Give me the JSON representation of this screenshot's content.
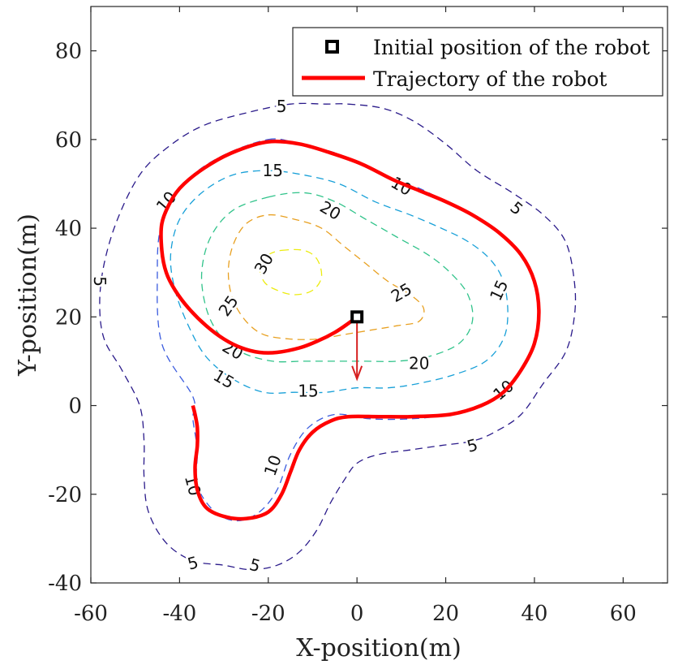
{
  "chart_data": {
    "type": "contour",
    "xlabel": "X-position(m)",
    "ylabel": "Y-position(m)",
    "xlim": [
      -60,
      70
    ],
    "ylim": [
      -40,
      90
    ],
    "xticks": [
      -60,
      -40,
      -20,
      0,
      20,
      40,
      60
    ],
    "yticks": [
      -40,
      -20,
      0,
      20,
      40,
      60,
      80
    ],
    "legend": {
      "location": "top-right",
      "entries": [
        {
          "label": "Initial position of the robot",
          "marker": "square",
          "color": "#000000"
        },
        {
          "label": "Trajectory of the robot",
          "line": "solid",
          "color": "#ff0000"
        }
      ]
    },
    "initial_position": {
      "x": 0,
      "y": 20
    },
    "heading_arrow": {
      "from": [
        0,
        20
      ],
      "to": [
        0,
        6
      ],
      "color": "#d62020"
    },
    "contours": [
      {
        "level": 5,
        "color": "#2a1a8a",
        "points": [
          [
            -2,
            68
          ],
          [
            6,
            67
          ],
          [
            13,
            64
          ],
          [
            20,
            59
          ],
          [
            27,
            53
          ],
          [
            35,
            48
          ],
          [
            42,
            43
          ],
          [
            47,
            37
          ],
          [
            49,
            28
          ],
          [
            49,
            20
          ],
          [
            47,
            12
          ],
          [
            42,
            5
          ],
          [
            37,
            -2
          ],
          [
            31,
            -6
          ],
          [
            26,
            -8
          ],
          [
            19,
            -9
          ],
          [
            12,
            -10
          ],
          [
            5,
            -11
          ],
          [
            0,
            -13
          ],
          [
            -3,
            -17
          ],
          [
            -6,
            -22
          ],
          [
            -9,
            -28
          ],
          [
            -13,
            -33
          ],
          [
            -18,
            -36
          ],
          [
            -24,
            -37
          ],
          [
            -30,
            -36
          ],
          [
            -37,
            -35
          ],
          [
            -43,
            -31
          ],
          [
            -47,
            -24
          ],
          [
            -48,
            -16
          ],
          [
            -48,
            -8
          ],
          [
            -49,
            0
          ],
          [
            -53,
            8
          ],
          [
            -57,
            15
          ],
          [
            -58,
            23
          ],
          [
            -57,
            32
          ],
          [
            -54,
            42
          ],
          [
            -49,
            52
          ],
          [
            -43,
            58
          ],
          [
            -35,
            63
          ],
          [
            -25,
            66
          ],
          [
            -15,
            68
          ],
          [
            -7,
            68
          ],
          [
            -2,
            68
          ]
        ],
        "labels": [
          {
            "text": "5",
            "x": -17,
            "y": 67.5,
            "angle": 0
          },
          {
            "text": "5",
            "x": 36,
            "y": 44.5,
            "angle": 40
          },
          {
            "text": "5",
            "x": -58,
            "y": 28,
            "angle": 90
          },
          {
            "text": "5",
            "x": 26,
            "y": -9,
            "angle": -15
          },
          {
            "text": "5",
            "x": -37,
            "y": -35.5,
            "angle": -15
          },
          {
            "text": "5",
            "x": -23,
            "y": -36,
            "angle": 15
          }
        ]
      },
      {
        "level": 10,
        "color": "#3a5bde",
        "points": [
          [
            -20,
            60
          ],
          [
            -13,
            59
          ],
          [
            -5,
            57
          ],
          [
            2,
            54
          ],
          [
            8,
            51
          ],
          [
            14,
            49
          ],
          [
            20,
            46
          ],
          [
            26,
            43
          ],
          [
            32,
            39
          ],
          [
            37,
            34
          ],
          [
            40,
            28
          ],
          [
            41,
            21
          ],
          [
            40,
            14
          ],
          [
            37,
            8
          ],
          [
            33,
            3
          ],
          [
            28,
            0
          ],
          [
            21,
            -2
          ],
          [
            12,
            -3
          ],
          [
            3,
            -3
          ],
          [
            -5,
            -2
          ],
          [
            -11,
            -5
          ],
          [
            -15,
            -11
          ],
          [
            -18,
            -19
          ],
          [
            -22,
            -24
          ],
          [
            -27,
            -26
          ],
          [
            -32,
            -24
          ],
          [
            -36,
            -18
          ],
          [
            -36,
            -10
          ],
          [
            -37,
            -3
          ],
          [
            -37,
            2
          ],
          [
            -44,
            14
          ],
          [
            -45,
            30
          ],
          [
            -44,
            41
          ],
          [
            -39,
            50
          ],
          [
            -31,
            56
          ],
          [
            -20,
            60
          ]
        ],
        "labels": [
          {
            "text": "10",
            "x": -43,
            "y": 46,
            "angle": -50
          },
          {
            "text": "10",
            "x": 10,
            "y": 49.5,
            "angle": 30
          },
          {
            "text": "10",
            "x": 33,
            "y": 3.5,
            "angle": -40
          },
          {
            "text": "10",
            "x": -19,
            "y": -13.5,
            "angle": -70
          },
          {
            "text": "10",
            "x": -37,
            "y": -18,
            "angle": 75
          }
        ]
      },
      {
        "level": 15,
        "color": "#18a0d8",
        "points": [
          [
            -20,
            53
          ],
          [
            -12,
            52
          ],
          [
            -4,
            50
          ],
          [
            4,
            46
          ],
          [
            12,
            43
          ],
          [
            19,
            40
          ],
          [
            25,
            37
          ],
          [
            30,
            33
          ],
          [
            33,
            28
          ],
          [
            34,
            21
          ],
          [
            33,
            15
          ],
          [
            29,
            10
          ],
          [
            22,
            7
          ],
          [
            14,
            5
          ],
          [
            7,
            4
          ],
          [
            0,
            4
          ],
          [
            -7,
            3
          ],
          [
            -14,
            3
          ],
          [
            -21,
            3
          ],
          [
            -28,
            6
          ],
          [
            -34,
            11
          ],
          [
            -38,
            18
          ],
          [
            -41,
            26
          ],
          [
            -42,
            34
          ],
          [
            -40,
            42
          ],
          [
            -35,
            48
          ],
          [
            -28,
            52
          ],
          [
            -20,
            53
          ]
        ],
        "labels": [
          {
            "text": "15",
            "x": -19,
            "y": 53,
            "angle": 0
          },
          {
            "text": "15",
            "x": 32,
            "y": 26,
            "angle": -65
          },
          {
            "text": "15",
            "x": -11,
            "y": 3.3,
            "angle": 0
          },
          {
            "text": "15",
            "x": -30,
            "y": 6,
            "angle": 30
          }
        ]
      },
      {
        "level": 20,
        "color": "#30c38a",
        "points": [
          [
            -20,
            47
          ],
          [
            -12,
            48
          ],
          [
            -5,
            46
          ],
          [
            2,
            42
          ],
          [
            9,
            38
          ],
          [
            16,
            34
          ],
          [
            21,
            30
          ],
          [
            25,
            25
          ],
          [
            26,
            19
          ],
          [
            23,
            14
          ],
          [
            16,
            11
          ],
          [
            9,
            10
          ],
          [
            2,
            10
          ],
          [
            -5,
            10
          ],
          [
            -12,
            10
          ],
          [
            -19,
            10
          ],
          [
            -26,
            12
          ],
          [
            -31,
            16
          ],
          [
            -34,
            22
          ],
          [
            -35,
            30
          ],
          [
            -33,
            38
          ],
          [
            -28,
            44
          ],
          [
            -20,
            47
          ]
        ],
        "labels": [
          {
            "text": "20",
            "x": -6,
            "y": 44,
            "angle": 30
          },
          {
            "text": "20",
            "x": 14,
            "y": 9.5,
            "angle": 0
          },
          {
            "text": "20",
            "x": -28,
            "y": 12.5,
            "angle": 30
          }
        ]
      },
      {
        "level": 25,
        "color": "#e8a020",
        "points": [
          [
            -20,
            43
          ],
          [
            -14,
            42
          ],
          [
            -8,
            40
          ],
          [
            -3,
            36
          ],
          [
            2,
            32
          ],
          [
            7,
            28
          ],
          [
            12,
            25
          ],
          [
            15,
            22
          ],
          [
            14,
            19
          ],
          [
            9,
            18
          ],
          [
            3,
            17
          ],
          [
            -3,
            16
          ],
          [
            -9,
            15
          ],
          [
            -15,
            15
          ],
          [
            -21,
            16
          ],
          [
            -25,
            19
          ],
          [
            -28,
            24
          ],
          [
            -29,
            30
          ],
          [
            -28,
            36
          ],
          [
            -25,
            41
          ],
          [
            -20,
            43
          ]
        ],
        "labels": [
          {
            "text": "25",
            "x": 10,
            "y": 25.5,
            "angle": -30
          },
          {
            "text": "25",
            "x": -29,
            "y": 22.5,
            "angle": -55
          }
        ]
      },
      {
        "level": 30,
        "color": "#ecec10",
        "points": [
          [
            -17,
            35
          ],
          [
            -12,
            35
          ],
          [
            -9,
            33
          ],
          [
            -8,
            29
          ],
          [
            -10,
            26
          ],
          [
            -14,
            25
          ],
          [
            -18,
            26
          ],
          [
            -21,
            28
          ],
          [
            -22,
            32
          ],
          [
            -20,
            34
          ],
          [
            -17,
            35
          ]
        ],
        "labels": [
          {
            "text": "30",
            "x": -21,
            "y": 32,
            "angle": -60
          }
        ]
      }
    ],
    "trajectory": {
      "color": "#ff0000",
      "points": [
        [
          0,
          20
        ],
        [
          -2,
          18.5
        ],
        [
          -5,
          16.5
        ],
        [
          -9,
          14.5
        ],
        [
          -13,
          13
        ],
        [
          -18,
          12
        ],
        [
          -22,
          12
        ],
        [
          -26,
          13
        ],
        [
          -30,
          15
        ],
        [
          -34,
          18
        ],
        [
          -38,
          22
        ],
        [
          -41,
          26
        ],
        [
          -43,
          30
        ],
        [
          -44,
          35
        ],
        [
          -44,
          41
        ],
        [
          -42,
          46
        ],
        [
          -39,
          50
        ],
        [
          -33,
          54.5
        ],
        [
          -27,
          57.5
        ],
        [
          -20,
          59.5
        ],
        [
          -13,
          59
        ],
        [
          -6,
          57
        ],
        [
          1,
          54.5
        ],
        [
          8,
          51
        ],
        [
          14,
          48.5
        ],
        [
          20,
          46
        ],
        [
          26,
          43
        ],
        [
          32,
          39
        ],
        [
          37,
          34
        ],
        [
          40,
          28
        ],
        [
          41,
          21
        ],
        [
          40,
          14
        ],
        [
          37,
          8
        ],
        [
          33,
          3
        ],
        [
          28,
          0
        ],
        [
          21,
          -2
        ],
        [
          12,
          -2.5
        ],
        [
          5,
          -2.5
        ],
        [
          -2,
          -2.5
        ],
        [
          -6,
          -3.5
        ],
        [
          -10,
          -6
        ],
        [
          -13,
          -10
        ],
        [
          -15,
          -15
        ],
        [
          -17,
          -20
        ],
        [
          -20,
          -24
        ],
        [
          -25,
          -25.5
        ],
        [
          -30,
          -25
        ],
        [
          -34,
          -23
        ],
        [
          -36,
          -19
        ],
        [
          -36.5,
          -14
        ],
        [
          -36,
          -9
        ],
        [
          -36,
          -5
        ],
        [
          -36.5,
          -2
        ],
        [
          -37,
          0
        ]
      ]
    }
  }
}
